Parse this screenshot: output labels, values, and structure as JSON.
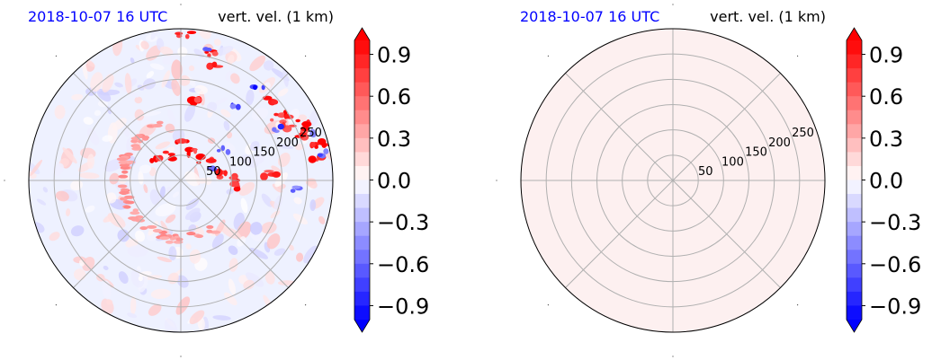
{
  "chart_data": [
    {
      "type": "heatmap",
      "projection": "polar",
      "title_left": "2018-10-07 16 UTC",
      "title_right": "vert. vel. (1 km)",
      "radial_ticks": [
        50,
        100,
        150,
        200,
        250
      ],
      "radial_tick_labels": [
        "50",
        "100",
        "150",
        "200",
        "250"
      ],
      "rlim": [
        0,
        300
      ],
      "angular_grid_deg": [
        0,
        45,
        90,
        135,
        180,
        225,
        270,
        315
      ],
      "grid": true,
      "field_description": "scattered updraft and downdraft cells, strongest toward the east",
      "colorbar": {
        "cmap": "bwr",
        "levels_range": [
          -1.0,
          1.0
        ],
        "ticks": [
          -0.9,
          -0.6,
          -0.3,
          0.0,
          0.3,
          0.6,
          0.9
        ],
        "tick_labels": [
          "−0.9",
          "−0.6",
          "−0.3",
          "0.0",
          "0.3",
          "0.6",
          "0.9"
        ],
        "extend": "both"
      },
      "colors": {
        "positive": "#ff0000",
        "negative": "#0000ff",
        "background_field": "#eef1ff"
      }
    },
    {
      "type": "heatmap",
      "projection": "polar",
      "title_left": "2018-10-07 16 UTC",
      "title_right": "vert. vel. (1 km)",
      "radial_ticks": [
        50,
        100,
        150,
        200,
        250
      ],
      "radial_tick_labels": [
        "50",
        "100",
        "150",
        "200",
        "250"
      ],
      "rlim": [
        0,
        300
      ],
      "angular_grid_deg": [
        0,
        45,
        90,
        135,
        180,
        225,
        270,
        315
      ],
      "grid": true,
      "field_description": "uniform field near zero (light pink)",
      "uniform_value": 0.05,
      "colorbar": {
        "cmap": "bwr",
        "levels_range": [
          -1.0,
          1.0
        ],
        "ticks": [
          -0.9,
          -0.6,
          -0.3,
          0.0,
          0.3,
          0.6,
          0.9
        ],
        "tick_labels": [
          "−0.9",
          "−0.6",
          "−0.3",
          "0.0",
          "0.3",
          "0.6",
          "0.9"
        ],
        "extend": "both"
      },
      "colors": {
        "positive": "#ff0000",
        "negative": "#0000ff",
        "background_field": "#fdf0f0"
      }
    }
  ]
}
